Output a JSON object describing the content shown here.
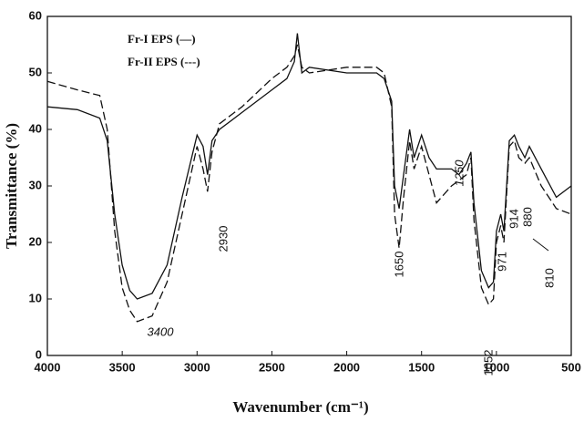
{
  "chart_data": {
    "type": "line",
    "x_label": "Wavenumber (cm⁻¹)",
    "y_label": "Transmittance (%)",
    "x": [
      4000,
      3800,
      3650,
      3600,
      3550,
      3500,
      3450,
      3400,
      3300,
      3200,
      3100,
      3000,
      2960,
      2930,
      2900,
      2850,
      2700,
      2500,
      2400,
      2350,
      2330,
      2300,
      2250,
      2000,
      1800,
      1750,
      1700,
      1680,
      1650,
      1620,
      1580,
      1550,
      1500,
      1450,
      1400,
      1300,
      1250,
      1200,
      1170,
      1150,
      1100,
      1052,
      1020,
      1000,
      971,
      950,
      914,
      880,
      850,
      810,
      780,
      700,
      600,
      500
    ],
    "series": [
      {
        "name": "Fr-I EPS (—)",
        "color": "#111111",
        "line_style": "solid",
        "values": [
          44,
          43.5,
          42,
          38,
          25,
          16,
          11.5,
          10,
          11,
          16,
          28,
          39,
          37,
          32,
          38,
          40,
          43,
          47,
          49,
          52,
          57,
          50,
          51,
          50,
          50,
          49,
          45,
          30,
          26,
          32,
          40,
          35,
          39,
          35,
          33,
          33,
          32,
          34,
          36,
          27,
          15,
          12,
          13,
          22,
          25,
          22,
          38,
          39,
          37,
          35,
          37,
          33,
          28,
          30
        ]
      },
      {
        "name": "Fr-II EPS (---)",
        "color": "#111111",
        "line_style": "dashed",
        "values": [
          48.5,
          47,
          46,
          40,
          22,
          12,
          8,
          6,
          7,
          13,
          25,
          37,
          33,
          29,
          36,
          41,
          44,
          49,
          51,
          53,
          55,
          51,
          50,
          51,
          51,
          50,
          44,
          25,
          19,
          28,
          38,
          33,
          37,
          32,
          27,
          30,
          31,
          32,
          35,
          24,
          12,
          9,
          10,
          20,
          23,
          20,
          37,
          38,
          35,
          34,
          35,
          30,
          26,
          25
        ]
      }
    ],
    "xlim": [
      4000,
      500
    ],
    "xticks": [
      4000,
      3500,
      3000,
      2500,
      2000,
      1500,
      1000,
      500
    ],
    "ylim": [
      0,
      60
    ],
    "yticks": [
      0,
      10,
      20,
      30,
      40,
      50,
      60
    ],
    "grid": false,
    "legend_position": "upper left",
    "annotations": [
      "3400",
      "2930",
      "1650",
      "1250",
      "1052",
      "971",
      "914",
      "880",
      "810"
    ]
  }
}
